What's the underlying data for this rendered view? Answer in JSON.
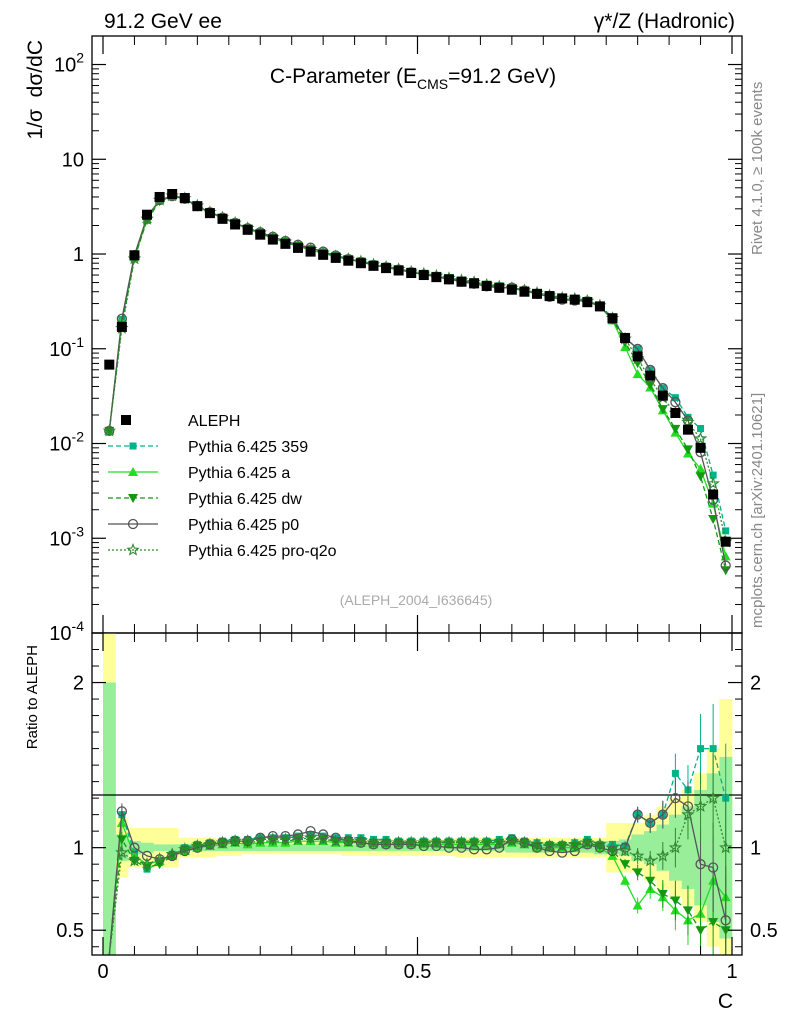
{
  "header": {
    "left": "91.2 GeV ee",
    "right": "γ*/Z (Hadronic)"
  },
  "side": {
    "rivet": "Rivet 4.1.0, ≥ 100k events",
    "mcplots": "mcplots.cern.ch [arXiv:2401.10621]"
  },
  "chart_data": {
    "type": "line",
    "title_parts": {
      "pre": "C-Parameter (E",
      "sub": "CMS",
      "post": "=91.2 GeV)"
    },
    "watermark": "(ALEPH_2004_I636645)",
    "ylabel": "1/σ  dσ/dC",
    "xlabel": "C",
    "ratio_ylabel": "Ratio to ALEPH",
    "xlim": [
      0,
      1
    ],
    "ylim_log": [
      0.0001,
      200
    ],
    "ratio_ylim": [
      0.35,
      2.3
    ],
    "yticks_main": [
      "10^-4",
      "10^-3",
      "10^-2",
      "10^-1",
      "1",
      "10",
      "10^2"
    ],
    "xticks": [
      "0",
      "0.5",
      "1"
    ],
    "ratio_yticks": [
      "0.5",
      "1",
      "2"
    ],
    "x": [
      0.01,
      0.03,
      0.05,
      0.07,
      0.09,
      0.11,
      0.13,
      0.15,
      0.17,
      0.19,
      0.21,
      0.23,
      0.25,
      0.27,
      0.29,
      0.31,
      0.33,
      0.35,
      0.37,
      0.39,
      0.41,
      0.43,
      0.45,
      0.47,
      0.49,
      0.51,
      0.53,
      0.55,
      0.57,
      0.59,
      0.61,
      0.63,
      0.65,
      0.67,
      0.69,
      0.71,
      0.73,
      0.75,
      0.77,
      0.79,
      0.81,
      0.83,
      0.85,
      0.87,
      0.89,
      0.91,
      0.93,
      0.95,
      0.97,
      0.99
    ],
    "reference": {
      "name": "ALEPH",
      "values": [
        0.068,
        0.17,
        0.97,
        2.6,
        4.0,
        4.3,
        3.9,
        3.2,
        2.7,
        2.35,
        2.05,
        1.8,
        1.6,
        1.42,
        1.28,
        1.16,
        1.06,
        0.98,
        0.91,
        0.85,
        0.8,
        0.75,
        0.71,
        0.67,
        0.63,
        0.6,
        0.57,
        0.54,
        0.51,
        0.49,
        0.46,
        0.44,
        0.42,
        0.4,
        0.38,
        0.36,
        0.34,
        0.33,
        0.31,
        0.28,
        0.21,
        0.13,
        0.083,
        0.052,
        0.032,
        0.021,
        0.014,
        0.009,
        0.0029,
        0.00092
      ]
    },
    "series": [
      {
        "name": "Pythia 6.425 359",
        "color": "#00b38a",
        "ratio": [
          0.2,
          1.2,
          0.97,
          0.87,
          0.91,
          0.96,
          1.0,
          1.02,
          1.03,
          1.04,
          1.05,
          1.05,
          1.06,
          1.06,
          1.06,
          1.07,
          1.08,
          1.07,
          1.06,
          1.06,
          1.06,
          1.05,
          1.05,
          1.04,
          1.04,
          1.04,
          1.04,
          1.04,
          1.04,
          1.04,
          1.04,
          1.05,
          1.06,
          1.04,
          1.03,
          1.02,
          1.02,
          1.03,
          1.05,
          1.02,
          1.02,
          1.01,
          1.2,
          1.15,
          1.2,
          1.45,
          1.35,
          1.6,
          1.6,
          1.3
        ]
      },
      {
        "name": "Pythia 6.425 a",
        "color": "#22dd22",
        "ratio": [
          0.2,
          1.15,
          0.95,
          0.9,
          0.92,
          0.95,
          0.98,
          1.0,
          1.01,
          1.02,
          1.03,
          1.02,
          1.03,
          1.03,
          1.03,
          1.04,
          1.04,
          1.04,
          1.03,
          1.03,
          1.03,
          1.02,
          1.02,
          1.02,
          1.02,
          1.02,
          1.02,
          1.02,
          1.02,
          1.02,
          1.02,
          1.02,
          1.03,
          1.02,
          1.0,
          1.0,
          1.0,
          1.0,
          1.02,
          1.0,
          0.95,
          0.8,
          0.65,
          0.75,
          0.7,
          0.62,
          0.56,
          0.6,
          0.8,
          0.7
        ]
      },
      {
        "name": "Pythia 6.425 dw",
        "color": "#119911",
        "ratio": [
          0.2,
          1.05,
          0.92,
          0.88,
          0.9,
          0.95,
          0.99,
          1.01,
          1.02,
          1.03,
          1.04,
          1.03,
          1.04,
          1.04,
          1.04,
          1.05,
          1.05,
          1.05,
          1.04,
          1.04,
          1.04,
          1.03,
          1.03,
          1.03,
          1.03,
          1.03,
          1.03,
          1.03,
          1.03,
          1.03,
          1.03,
          1.03,
          1.04,
          1.03,
          1.01,
          1.01,
          1.01,
          1.01,
          1.03,
          1.01,
          0.98,
          0.9,
          0.85,
          0.8,
          0.72,
          0.68,
          0.62,
          0.5,
          0.55,
          0.5
        ]
      },
      {
        "name": "Pythia 6.425 p0",
        "color": "#555555",
        "ratio": [
          0.2,
          1.22,
          1.0,
          0.95,
          0.93,
          0.95,
          0.98,
          1.0,
          1.02,
          1.03,
          1.04,
          1.04,
          1.06,
          1.07,
          1.07,
          1.08,
          1.1,
          1.08,
          1.06,
          1.04,
          1.03,
          1.02,
          1.02,
          1.02,
          1.02,
          1.01,
          1.01,
          1.0,
          1.0,
          0.99,
          0.99,
          1.0,
          1.05,
          1.03,
          1.0,
          0.98,
          0.97,
          0.98,
          1.02,
          1.0,
          0.98,
          1.0,
          1.2,
          1.15,
          1.2,
          1.3,
          1.25,
          0.9,
          0.88,
          0.56
        ]
      },
      {
        "name": "Pythia 6.425 pro-q2o",
        "color": "#338833",
        "ratio": [
          0.2,
          0.97,
          0.92,
          0.9,
          0.93,
          0.96,
          0.99,
          1.01,
          1.02,
          1.03,
          1.04,
          1.04,
          1.05,
          1.05,
          1.05,
          1.05,
          1.06,
          1.05,
          1.04,
          1.04,
          1.04,
          1.03,
          1.03,
          1.03,
          1.03,
          1.03,
          1.03,
          1.03,
          1.03,
          1.03,
          1.03,
          1.03,
          1.04,
          1.03,
          1.02,
          1.01,
          1.01,
          1.02,
          1.03,
          1.02,
          1.0,
          0.98,
          0.95,
          0.92,
          0.95,
          1.0,
          1.2,
          1.25,
          1.3,
          1.0
        ]
      }
    ],
    "band_stat": {
      "color": "#99ee99",
      "half_width": [
        1.0,
        0.08,
        0.04,
        0.03,
        0.02,
        0.02,
        0.02,
        0.02,
        0.02,
        0.02,
        0.02,
        0.02,
        0.02,
        0.02,
        0.02,
        0.02,
        0.02,
        0.02,
        0.02,
        0.02,
        0.02,
        0.02,
        0.02,
        0.02,
        0.02,
        0.02,
        0.02,
        0.02,
        0.02,
        0.02,
        0.02,
        0.02,
        0.03,
        0.03,
        0.03,
        0.03,
        0.03,
        0.03,
        0.03,
        0.04,
        0.04,
        0.05,
        0.08,
        0.1,
        0.14,
        0.2,
        0.25,
        0.35,
        0.45,
        0.55
      ]
    },
    "band_syst": {
      "color": "#ffff99",
      "half_width": [
        1.4,
        0.18,
        0.12,
        0.12,
        0.12,
        0.12,
        0.06,
        0.06,
        0.06,
        0.05,
        0.05,
        0.04,
        0.04,
        0.04,
        0.04,
        0.04,
        0.04,
        0.04,
        0.04,
        0.05,
        0.05,
        0.05,
        0.05,
        0.05,
        0.05,
        0.05,
        0.05,
        0.05,
        0.06,
        0.06,
        0.06,
        0.06,
        0.06,
        0.06,
        0.06,
        0.06,
        0.06,
        0.06,
        0.06,
        0.06,
        0.15,
        0.15,
        0.15,
        0.2,
        0.25,
        0.3,
        0.35,
        0.45,
        0.6,
        0.9
      ]
    }
  }
}
